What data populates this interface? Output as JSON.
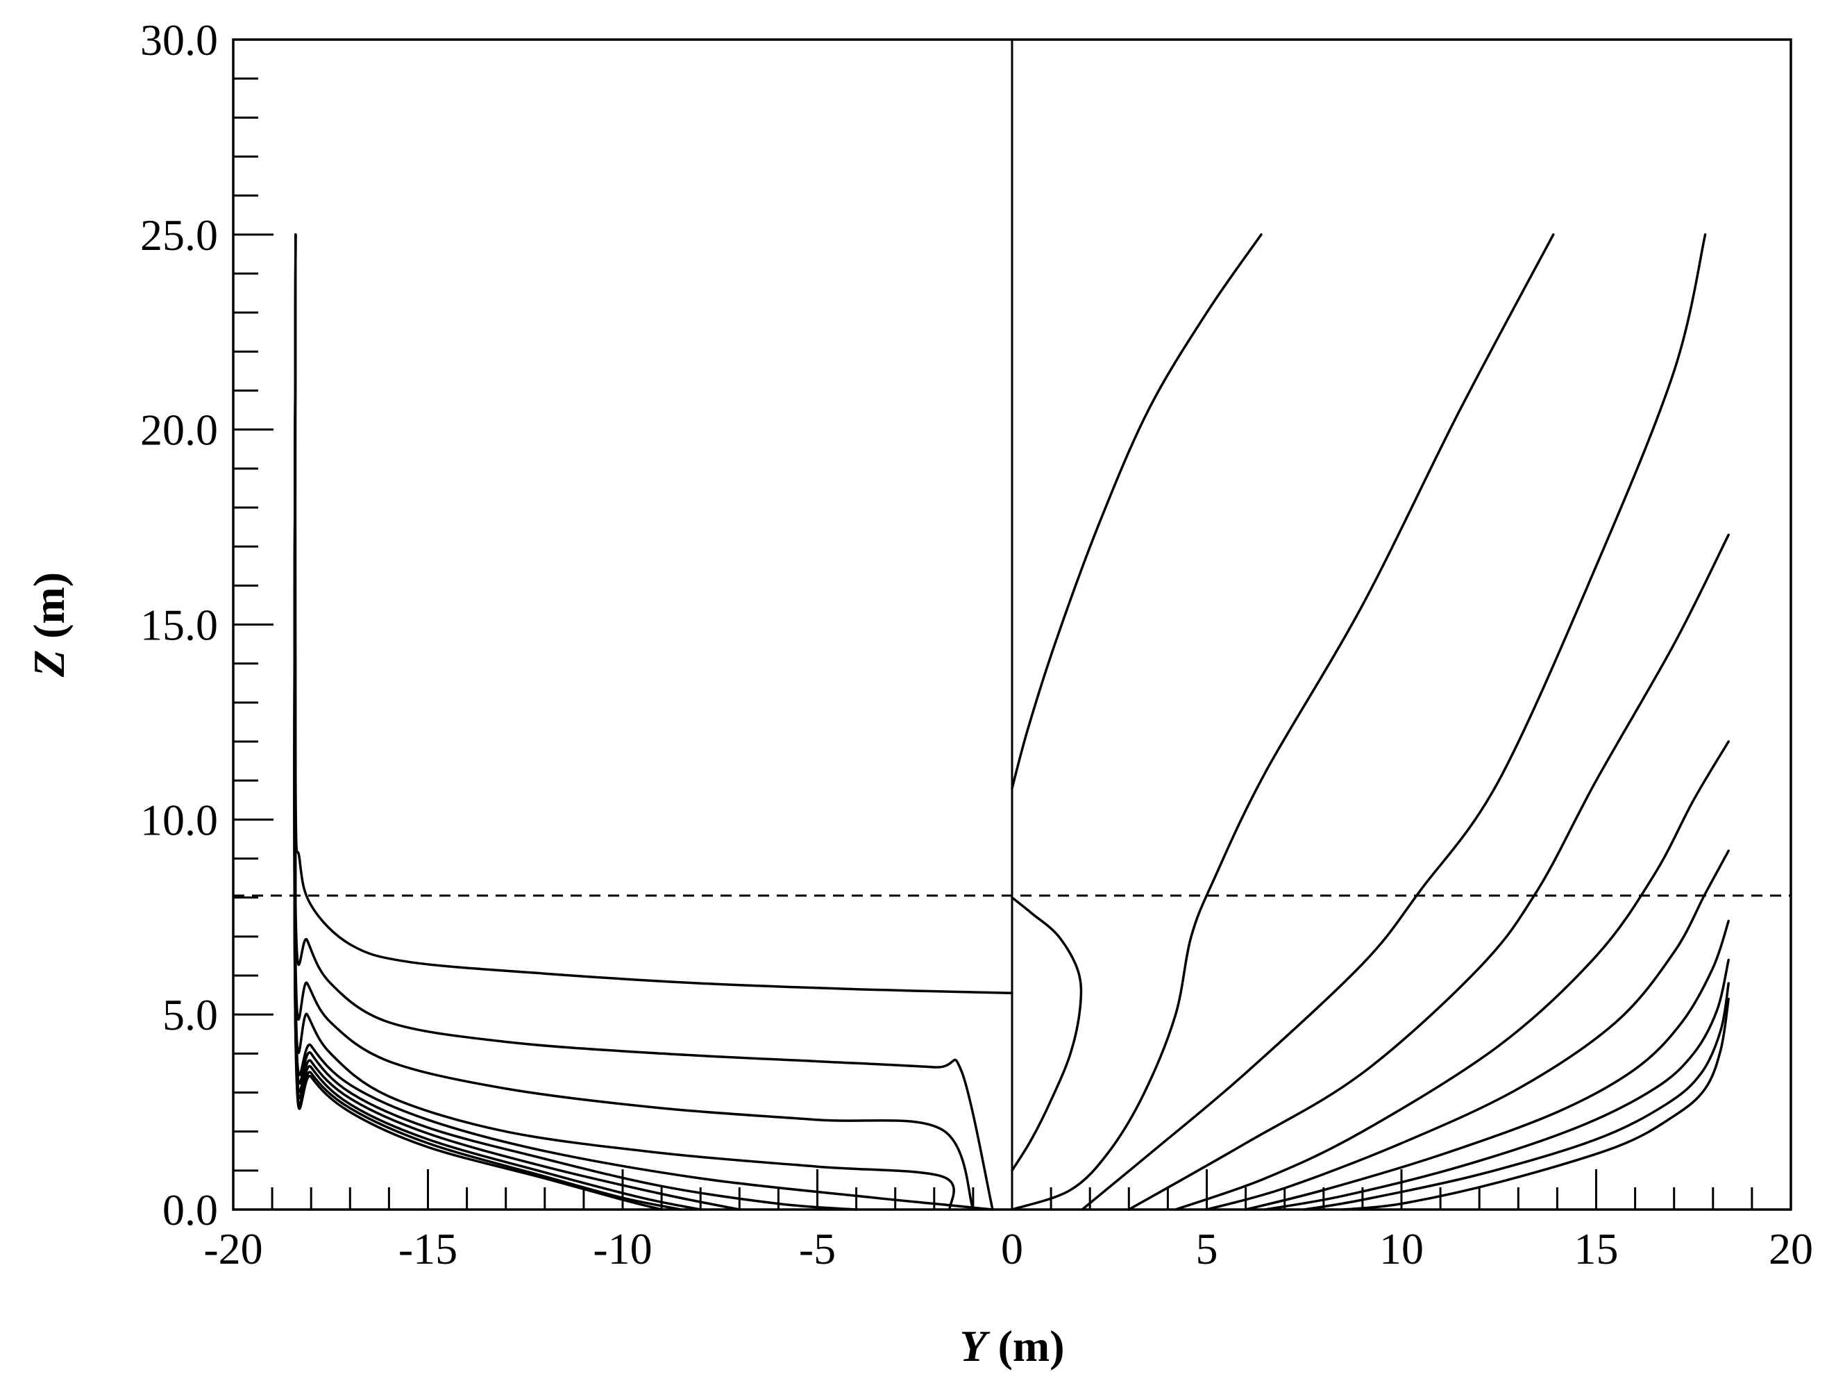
{
  "chart_data": {
    "type": "line",
    "title": "",
    "xlabel": {
      "var": "Y",
      "unit": " (m)"
    },
    "ylabel": {
      "var": "Z",
      "unit": " (m)"
    },
    "xlim": [
      -20,
      20
    ],
    "ylim": [
      0,
      30
    ],
    "x_ticks": [
      "-20",
      "-15",
      "-10",
      "-5",
      "0",
      "5",
      "10",
      "15",
      "20"
    ],
    "y_ticks": [
      "0.0",
      "5.0",
      "10.0",
      "15.0",
      "20.0",
      "25.0",
      "30.0"
    ],
    "grid": false,
    "centerline_y": 0,
    "waterline_z": 8.05,
    "line_color": "#000000",
    "series": [
      {
        "side": "left",
        "points": [
          [
            -18.4,
            25.0
          ],
          [
            -18.4,
            11.0
          ],
          [
            -18.3,
            9.0
          ],
          [
            -18.0,
            7.8
          ],
          [
            -17.0,
            6.8
          ],
          [
            -15.5,
            6.35
          ],
          [
            -12.0,
            6.05
          ],
          [
            -8.0,
            5.8
          ],
          [
            -4.0,
            5.65
          ],
          [
            0.0,
            5.55
          ]
        ]
      },
      {
        "side": "left",
        "points": [
          [
            -18.4,
            25.0
          ],
          [
            -18.4,
            7.8
          ],
          [
            -18.1,
            6.9
          ],
          [
            -17.5,
            5.8
          ],
          [
            -16.0,
            4.8
          ],
          [
            -13.0,
            4.3
          ],
          [
            -9.0,
            4.0
          ],
          [
            -5.0,
            3.8
          ],
          [
            -2.0,
            3.65
          ],
          [
            -1.3,
            3.55
          ],
          [
            -0.5,
            0.0
          ]
        ]
      },
      {
        "side": "left",
        "points": [
          [
            -18.4,
            25.0
          ],
          [
            -18.4,
            6.4
          ],
          [
            -18.1,
            5.8
          ],
          [
            -17.5,
            4.8
          ],
          [
            -16.0,
            3.8
          ],
          [
            -13.0,
            3.1
          ],
          [
            -9.0,
            2.6
          ],
          [
            -5.0,
            2.3
          ],
          [
            -1.8,
            2.05
          ],
          [
            -1.0,
            0.0
          ]
        ]
      },
      {
        "side": "left",
        "points": [
          [
            -18.4,
            25.0
          ],
          [
            -18.4,
            5.6
          ],
          [
            -18.1,
            5.0
          ],
          [
            -17.5,
            4.0
          ],
          [
            -16.0,
            2.9
          ],
          [
            -13.0,
            2.0
          ],
          [
            -9.0,
            1.45
          ],
          [
            -5.0,
            1.1
          ],
          [
            -1.8,
            0.85
          ],
          [
            -1.6,
            0.0
          ]
        ]
      },
      {
        "side": "left",
        "points": [
          [
            -18.4,
            25.0
          ],
          [
            -18.4,
            5.2
          ],
          [
            -18.0,
            4.2
          ],
          [
            -17.0,
            3.2
          ],
          [
            -15.0,
            2.3
          ],
          [
            -12.0,
            1.5
          ],
          [
            -8.0,
            0.8
          ],
          [
            -4.0,
            0.35
          ],
          [
            -1.5,
            0.1
          ],
          [
            -0.5,
            0.0
          ]
        ]
      },
      {
        "side": "left",
        "points": [
          [
            -18.4,
            25.0
          ],
          [
            -18.4,
            5.0
          ],
          [
            -18.0,
            4.0
          ],
          [
            -17.0,
            3.0
          ],
          [
            -15.0,
            2.1
          ],
          [
            -12.0,
            1.3
          ],
          [
            -9.0,
            0.6
          ],
          [
            -6.0,
            0.15
          ],
          [
            -4.0,
            0.0
          ]
        ]
      },
      {
        "side": "left",
        "points": [
          [
            -18.4,
            25.0
          ],
          [
            -18.4,
            4.8
          ],
          [
            -18.0,
            3.8
          ],
          [
            -17.0,
            2.85
          ],
          [
            -15.0,
            1.95
          ],
          [
            -12.0,
            1.1
          ],
          [
            -9.0,
            0.4
          ],
          [
            -7.0,
            0.0
          ]
        ]
      },
      {
        "side": "left",
        "points": [
          [
            -18.4,
            25.0
          ],
          [
            -18.4,
            4.65
          ],
          [
            -18.0,
            3.65
          ],
          [
            -17.0,
            2.7
          ],
          [
            -15.0,
            1.8
          ],
          [
            -12.0,
            0.95
          ],
          [
            -9.5,
            0.3
          ],
          [
            -8.0,
            0.0
          ]
        ]
      },
      {
        "side": "left",
        "points": [
          [
            -18.4,
            25.0
          ],
          [
            -18.4,
            4.5
          ],
          [
            -18.0,
            3.5
          ],
          [
            -17.0,
            2.6
          ],
          [
            -15.0,
            1.7
          ],
          [
            -12.0,
            0.85
          ],
          [
            -10.0,
            0.3
          ],
          [
            -8.5,
            0.0
          ]
        ]
      },
      {
        "side": "left",
        "points": [
          [
            -18.4,
            25.0
          ],
          [
            -18.4,
            4.4
          ],
          [
            -18.0,
            3.4
          ],
          [
            -17.0,
            2.5
          ],
          [
            -15.0,
            1.6
          ],
          [
            -12.0,
            0.8
          ],
          [
            -10.0,
            0.25
          ],
          [
            -9.0,
            0.0
          ]
        ]
      },
      {
        "side": "right",
        "points": [
          [
            6.4,
            25.0
          ],
          [
            5.0,
            23.0
          ],
          [
            3.5,
            20.5
          ],
          [
            2.2,
            17.5
          ],
          [
            1.1,
            14.5
          ],
          [
            0.4,
            12.3
          ],
          [
            0.0,
            10.8
          ]
        ]
      },
      {
        "side": "right",
        "points": [
          [
            0.0,
            8.0
          ],
          [
            0.5,
            7.6
          ],
          [
            1.2,
            7.0
          ],
          [
            1.7,
            6.1
          ],
          [
            1.75,
            5.2
          ],
          [
            1.5,
            4.0
          ],
          [
            1.0,
            2.8
          ],
          [
            0.5,
            1.8
          ],
          [
            0.0,
            1.0
          ]
        ]
      },
      {
        "side": "right",
        "points": [
          [
            13.9,
            25.0
          ],
          [
            11.5,
            20.5
          ],
          [
            9.0,
            15.5
          ],
          [
            6.5,
            11.2
          ],
          [
            5.2,
            8.5
          ],
          [
            4.6,
            7.0
          ],
          [
            4.2,
            5.0
          ],
          [
            3.4,
            3.0
          ],
          [
            2.5,
            1.5
          ],
          [
            1.5,
            0.5
          ],
          [
            0.0,
            0.0
          ]
        ]
      },
      {
        "side": "right",
        "points": [
          [
            17.8,
            25.0
          ],
          [
            17.0,
            21.5
          ],
          [
            15.0,
            16.5
          ],
          [
            12.5,
            11.0
          ],
          [
            10.5,
            8.2
          ],
          [
            9.0,
            6.3
          ],
          [
            6.0,
            3.5
          ],
          [
            3.5,
            1.4
          ],
          [
            1.8,
            0.0
          ]
        ]
      },
      {
        "side": "right",
        "points": [
          [
            18.4,
            17.3
          ],
          [
            17.0,
            14.5
          ],
          [
            15.0,
            11.0
          ],
          [
            13.5,
            8.2
          ],
          [
            12.0,
            6.2
          ],
          [
            9.0,
            3.5
          ],
          [
            6.0,
            1.7
          ],
          [
            3.0,
            0.0
          ]
        ]
      },
      {
        "side": "right",
        "points": [
          [
            18.4,
            12.0
          ],
          [
            17.5,
            10.5
          ],
          [
            16.5,
            8.6
          ],
          [
            15.0,
            6.5
          ],
          [
            12.5,
            4.2
          ],
          [
            9.0,
            2.0
          ],
          [
            6.5,
            0.8
          ],
          [
            4.2,
            0.0
          ]
        ]
      },
      {
        "side": "right",
        "points": [
          [
            18.4,
            9.2
          ],
          [
            17.8,
            8.1
          ],
          [
            17.0,
            6.6
          ],
          [
            15.5,
            4.8
          ],
          [
            13.0,
            3.1
          ],
          [
            10.0,
            1.7
          ],
          [
            7.0,
            0.55
          ],
          [
            5.0,
            0.0
          ]
        ]
      },
      {
        "side": "right",
        "points": [
          [
            18.4,
            7.4
          ],
          [
            18.0,
            6.2
          ],
          [
            17.2,
            4.8
          ],
          [
            16.0,
            3.6
          ],
          [
            14.0,
            2.5
          ],
          [
            11.0,
            1.4
          ],
          [
            8.0,
            0.5
          ],
          [
            6.0,
            0.0
          ]
        ]
      },
      {
        "side": "right",
        "points": [
          [
            18.4,
            6.4
          ],
          [
            18.1,
            5.1
          ],
          [
            17.5,
            4.0
          ],
          [
            16.5,
            3.1
          ],
          [
            14.5,
            2.1
          ],
          [
            11.5,
            1.1
          ],
          [
            8.5,
            0.35
          ],
          [
            6.5,
            0.0
          ]
        ]
      },
      {
        "side": "right",
        "points": [
          [
            18.4,
            5.8
          ],
          [
            18.2,
            4.6
          ],
          [
            17.7,
            3.5
          ],
          [
            16.8,
            2.7
          ],
          [
            15.0,
            1.8
          ],
          [
            12.0,
            0.9
          ],
          [
            9.0,
            0.25
          ],
          [
            7.5,
            0.0
          ]
        ]
      },
      {
        "side": "right",
        "points": [
          [
            18.4,
            5.4
          ],
          [
            18.2,
            4.1
          ],
          [
            17.8,
            3.1
          ],
          [
            17.0,
            2.4
          ],
          [
            15.5,
            1.6
          ],
          [
            12.5,
            0.7
          ],
          [
            10.0,
            0.15
          ],
          [
            8.5,
            0.0
          ]
        ]
      }
    ]
  }
}
